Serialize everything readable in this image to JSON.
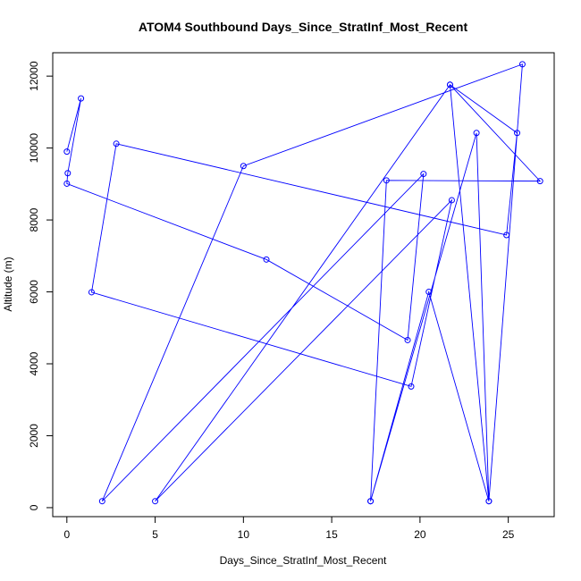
{
  "chart_data": {
    "type": "line",
    "title": "ATOM4 Southbound Days_Since_StratInf_Most_Recent",
    "xlabel": "Days_Since_StratInf_Most_Recent",
    "ylabel": "Altitude (m)",
    "xlim": [
      -0.8,
      27.6
    ],
    "ylim": [
      -250,
      12650
    ],
    "xticks": [
      0,
      5,
      10,
      15,
      20,
      25
    ],
    "yticks": [
      0,
      2000,
      4000,
      6000,
      8000,
      10000,
      12000
    ],
    "xtick_labels": [
      "0",
      "5",
      "10",
      "15",
      "20",
      "25"
    ],
    "ytick_labels": [
      "0",
      "2000",
      "4000",
      "6000",
      "8000",
      "10000",
      "12000"
    ],
    "grid": false,
    "color": "#0000ff",
    "series": [
      {
        "x": [
          0.0,
          0.8,
          0.05,
          0.0,
          11.3,
          19.3,
          20.2,
          2.0,
          10.0,
          25.8,
          23.9,
          20.5,
          17.2,
          23.2,
          23.9,
          21.7,
          25.5,
          24.9,
          2.8,
          1.4,
          19.5,
          21.8,
          5.0,
          21.7,
          26.8,
          18.1,
          17.2
        ],
        "y": [
          9900,
          11380,
          9300,
          9010,
          6900,
          4660,
          9280,
          180,
          9500,
          12330,
          180,
          6000,
          180,
          10420,
          180,
          11760,
          10420,
          7580,
          10120,
          5990,
          3370,
          8550,
          180,
          11760,
          9080,
          9100,
          180
        ]
      }
    ]
  }
}
